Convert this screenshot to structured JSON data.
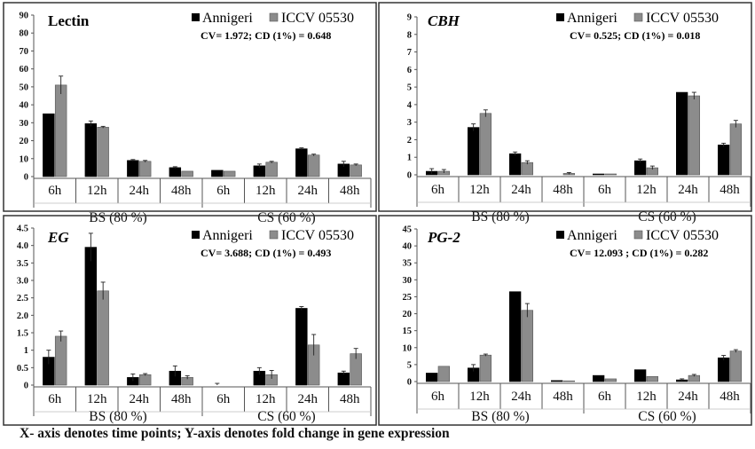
{
  "figure": {
    "caption": "X- axis denotes time points; Y-axis denotes fold change in gene expression",
    "colors": {
      "annigeri": "#000000",
      "iccv": "#8c8c8c",
      "frame": "#333333",
      "axis": "#555555"
    }
  },
  "chart_data": [
    {
      "type": "bar",
      "title": "Lectin",
      "stats": "CV= 1.972; CD (1%) = 0.648",
      "legend": [
        "Annigeri",
        "ICCV 05530"
      ],
      "categories": [
        "6h",
        "12h",
        "24h",
        "48h",
        "6h",
        "12h",
        "24h",
        "48h"
      ],
      "groups": [
        "BS (80 %)",
        "CS (60 %)"
      ],
      "series": [
        {
          "name": "Annigeri",
          "values": [
            35,
            29.5,
            9,
            5,
            3.5,
            6,
            15.5,
            7
          ],
          "errors": [
            0,
            1.5,
            0.5,
            0.5,
            0,
            1,
            0.5,
            1.5
          ]
        },
        {
          "name": "ICCV 05530",
          "values": [
            51,
            27.5,
            8.5,
            3,
            3,
            8,
            12,
            6.5
          ],
          "errors": [
            5,
            0.5,
            0.5,
            0,
            0,
            0.5,
            0.5,
            0.5
          ]
        }
      ],
      "yticks": [
        "0",
        "10",
        "20",
        "30",
        "40",
        "50",
        "60",
        "70",
        "80",
        "90"
      ],
      "ylim": [
        0,
        90
      ]
    },
    {
      "type": "bar",
      "title": "CBH",
      "stats": "CV= 0.525; CD (1%) = 0.018",
      "legend": [
        "Annigeri",
        "ICCV 05530"
      ],
      "categories": [
        "6h",
        "12h",
        "24h",
        "48h",
        "6h",
        "12h",
        "24h",
        "48h"
      ],
      "groups": [
        "BS (80 %)",
        "CS (60 %)"
      ],
      "series": [
        {
          "name": "Annigeri",
          "values": [
            0.2,
            2.7,
            1.2,
            0,
            0.05,
            0.8,
            4.7,
            1.7
          ],
          "errors": [
            0.15,
            0.2,
            0.1,
            0,
            0,
            0.1,
            0,
            0.1
          ]
        },
        {
          "name": "ICCV 05530",
          "values": [
            0.2,
            3.5,
            0.7,
            0.08,
            0.05,
            0.4,
            4.5,
            2.9
          ],
          "errors": [
            0.1,
            0.2,
            0.1,
            0.05,
            0,
            0.1,
            0.2,
            0.2
          ]
        }
      ],
      "yticks": [
        "0",
        "1",
        "2",
        "3",
        "4",
        "5",
        "6",
        "7",
        "8",
        "9"
      ],
      "ylim": [
        0,
        9
      ]
    },
    {
      "type": "bar",
      "title": "EG",
      "stats": "CV= 3.688; CD (1%) = 0.493",
      "legend": [
        "Annigeri",
        "ICCV 05530"
      ],
      "categories": [
        "6h",
        "12h",
        "24h",
        "48h",
        "6h",
        "12h",
        "24h",
        "48h"
      ],
      "groups": [
        "BS (80 %)",
        "CS (60 %)"
      ],
      "series": [
        {
          "name": "Annigeri",
          "values": [
            0.8,
            3.95,
            0.22,
            0.4,
            0,
            0.4,
            2.2,
            0.35
          ],
          "errors": [
            0.2,
            0.4,
            0.1,
            0.15,
            0.05,
            0.1,
            0.05,
            0.05
          ]
        },
        {
          "name": "ICCV 05530",
          "values": [
            1.4,
            2.7,
            0.3,
            0.22,
            0,
            0.3,
            1.15,
            0.9
          ],
          "errors": [
            0.15,
            0.25,
            0.03,
            0.05,
            0,
            0.12,
            0.3,
            0.15
          ]
        }
      ],
      "yticks": [
        "0",
        "0.5",
        "1",
        "1.5",
        "2.0",
        "2.5",
        "3.0",
        "3.5",
        "4.0",
        "4.5"
      ],
      "ylim": [
        0,
        4.5
      ]
    },
    {
      "type": "bar",
      "title": "PG-2",
      "stats": "CV= 12.093 ; CD (1%) = 0.282",
      "legend": [
        "Annigeri",
        "ICCV 05530"
      ],
      "categories": [
        "6h",
        "12h",
        "24h",
        "48h",
        "6h",
        "12h",
        "24h",
        "48h"
      ],
      "groups": [
        "BS (80 %)",
        "CS (60 %)"
      ],
      "series": [
        {
          "name": "Annigeri",
          "values": [
            2.5,
            4,
            26.5,
            0.3,
            1.8,
            3.5,
            0.5,
            7
          ],
          "errors": [
            0,
            1,
            0,
            0,
            0,
            0,
            0.3,
            0.7
          ]
        },
        {
          "name": "ICCV 05530",
          "values": [
            4.5,
            7.8,
            21,
            0.2,
            0.8,
            1.5,
            1.8,
            9
          ],
          "errors": [
            0,
            0.3,
            2,
            0,
            0,
            0,
            0.3,
            0.4
          ]
        }
      ],
      "yticks": [
        "0",
        "5",
        "10",
        "15",
        "20",
        "25",
        "30",
        "35",
        "40",
        "45"
      ],
      "ylim": [
        0,
        45
      ]
    }
  ]
}
